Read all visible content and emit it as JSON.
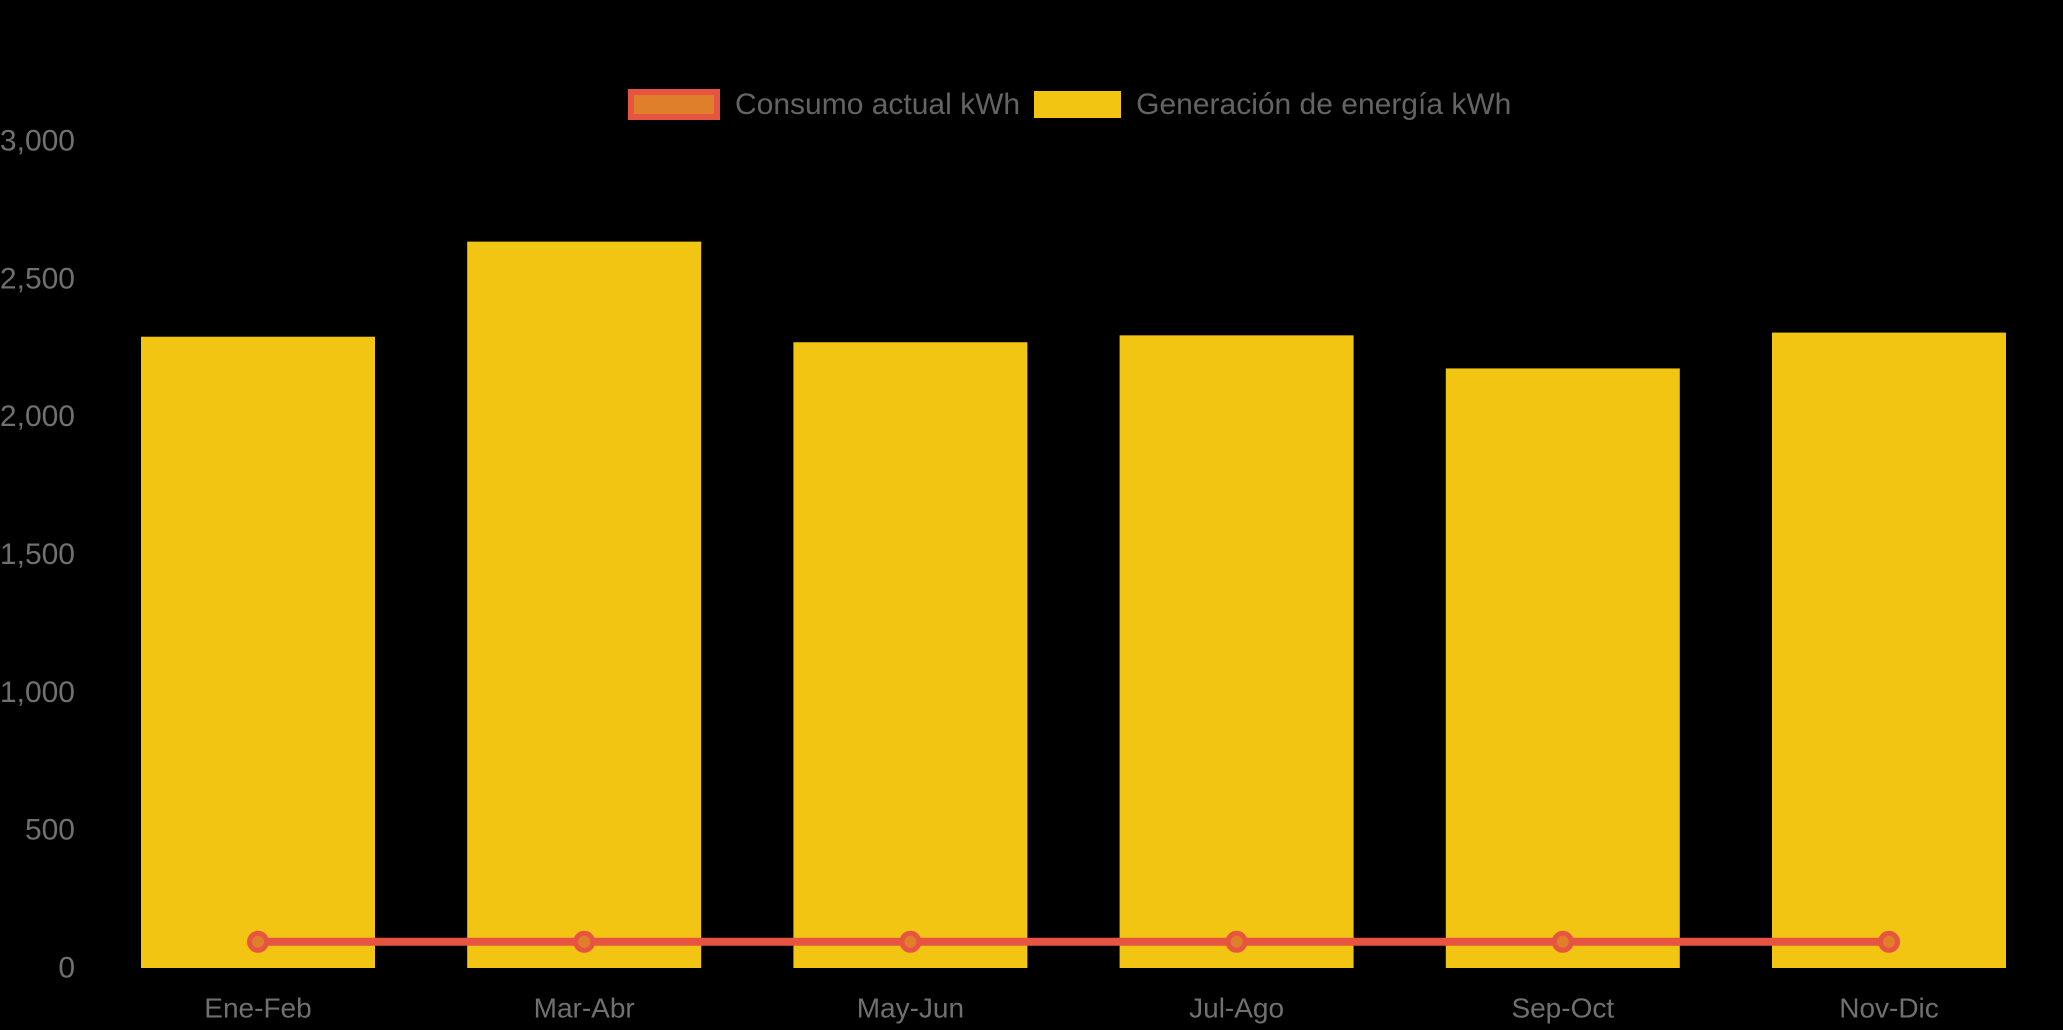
{
  "chart_data": {
    "type": "bar",
    "title": "",
    "categories": [
      "Ene-Feb",
      "Mar-Abr",
      "May-Jun",
      "Jul-Ago",
      "Sep-Oct",
      "Nov-Dic"
    ],
    "series": [
      {
        "name": "Consumo actual kWh",
        "type": "line",
        "values": [
          95,
          95,
          95,
          95,
          95,
          95
        ],
        "line_color": "#E85442",
        "marker_fill": "#E07F2A",
        "marker_stroke": "#E85442"
      },
      {
        "name": "Generación de energía kWh",
        "type": "bar",
        "values": [
          2290,
          2635,
          2270,
          2295,
          2175,
          2305
        ],
        "color": "#F1C512"
      }
    ],
    "xlabel": "",
    "ylabel": "",
    "ylim": [
      0,
      3000
    ],
    "y_ticks": [
      {
        "label": "0",
        "value": 0
      },
      {
        "label": "500",
        "value": 500
      },
      {
        "label": "1,000",
        "value": 1000
      },
      {
        "label": "1,500",
        "value": 1500
      },
      {
        "label": "2,000",
        "value": 2000
      },
      {
        "label": "2,500",
        "value": 2500
      },
      {
        "label": "3,000",
        "value": 3000
      }
    ],
    "grid": false,
    "legend_position": "top",
    "background_color": "#000000",
    "axis_text_color": "#707070",
    "legend_text_color": "#646464"
  }
}
